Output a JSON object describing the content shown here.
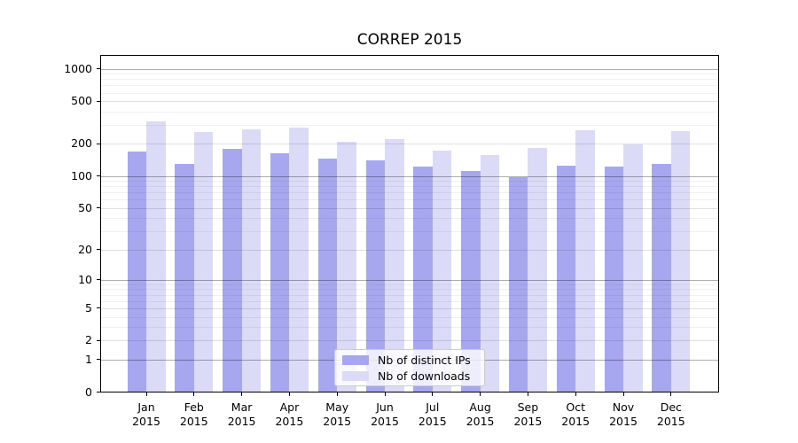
{
  "title": "CORREP 2015",
  "chart_data": {
    "type": "bar",
    "title": "CORREP 2015",
    "x_months": [
      "Jan",
      "Feb",
      "Mar",
      "Apr",
      "May",
      "Jun",
      "Jul",
      "Aug",
      "Sep",
      "Oct",
      "Nov",
      "Dec"
    ],
    "x_year": "2015",
    "series": [
      {
        "name": "Nb of distinct IPs",
        "color": "#a7a7f0",
        "values": [
          170,
          130,
          180,
          164,
          147,
          140,
          122,
          112,
          97,
          126,
          123,
          131
        ]
      },
      {
        "name": "Nb of downloads",
        "color": "#dbdbf8",
        "values": [
          322,
          260,
          272,
          283,
          210,
          221,
          172,
          157,
          184,
          266,
          198,
          261
        ]
      }
    ],
    "yscale": "log1p",
    "y_ticks": [
      0,
      1,
      2,
      5,
      10,
      20,
      50,
      100,
      200,
      500,
      1000
    ],
    "ylim": [
      0,
      1400
    ],
    "xlabel": "",
    "ylabel": "",
    "grid": true,
    "legend_position": "lower center",
    "colors": {
      "spine": "#000000",
      "major_gridline": "rgba(0,0,0,0.32)",
      "mid_gridline": "rgba(0,0,0,0.12)",
      "minor_gridline": "rgba(0,0,0,0.06)"
    }
  }
}
